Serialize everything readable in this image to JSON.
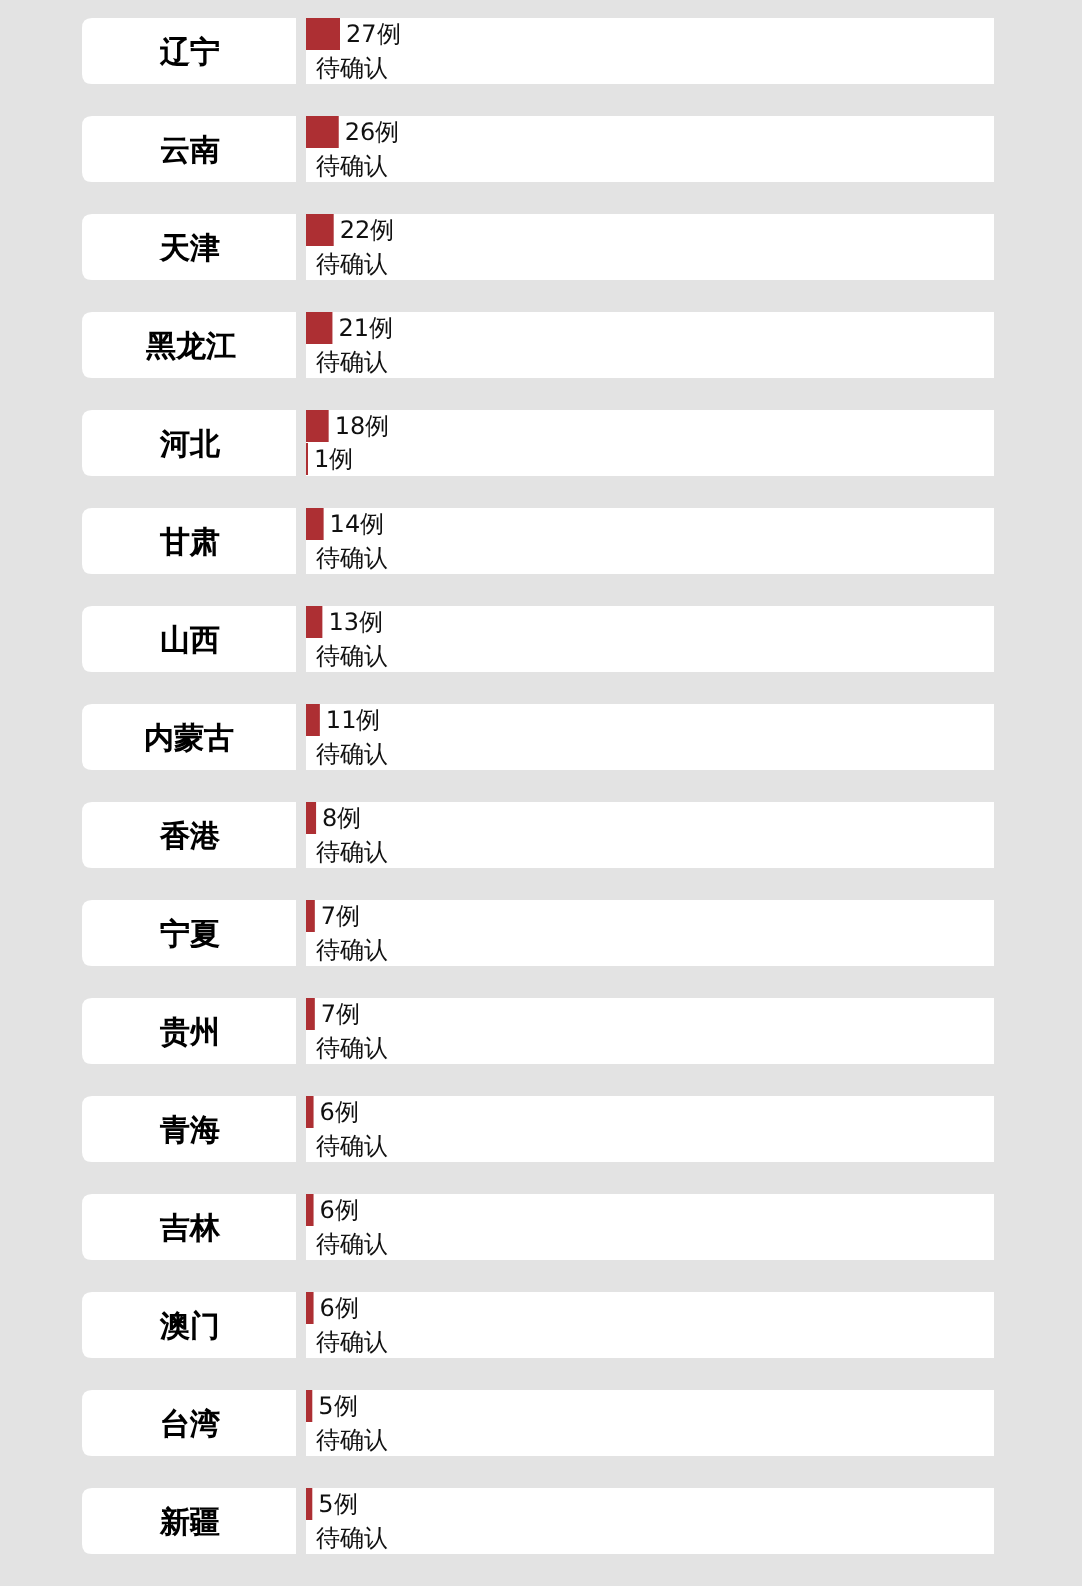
{
  "chart_data": {
    "type": "bar",
    "orientation": "horizontal",
    "categories": [
      "辽宁",
      "云南",
      "天津",
      "黑龙江",
      "河北",
      "甘肃",
      "山西",
      "内蒙古",
      "香港",
      "宁夏",
      "贵州",
      "青海",
      "吉林",
      "澳门",
      "台湾",
      "新疆"
    ],
    "series": [
      {
        "color": "#ad2f33",
        "values": [
          27,
          26,
          22,
          21,
          18,
          14,
          13,
          11,
          8,
          7,
          7,
          6,
          6,
          6,
          5,
          5
        ],
        "value_labels": [
          "27例",
          "26例",
          "22例",
          "21例",
          "18例",
          "14例",
          "13例",
          "11例",
          "8例",
          "7例",
          "7例",
          "6例",
          "6例",
          "6例",
          "5例",
          "5例"
        ]
      },
      {
        "color": "#ad2f33",
        "values": [
          null,
          null,
          null,
          null,
          1,
          null,
          null,
          null,
          null,
          null,
          null,
          null,
          null,
          null,
          null,
          null
        ],
        "value_labels": [
          "待确认",
          "待确认",
          "待确认",
          "待确认",
          "1例",
          "待确认",
          "待确认",
          "待确认",
          "待确认",
          "待确认",
          "待确认",
          "待确认",
          "待确认",
          "待确认",
          "待确认",
          "待确认"
        ]
      }
    ],
    "grid": "y",
    "tick_labels": "y"
  }
}
